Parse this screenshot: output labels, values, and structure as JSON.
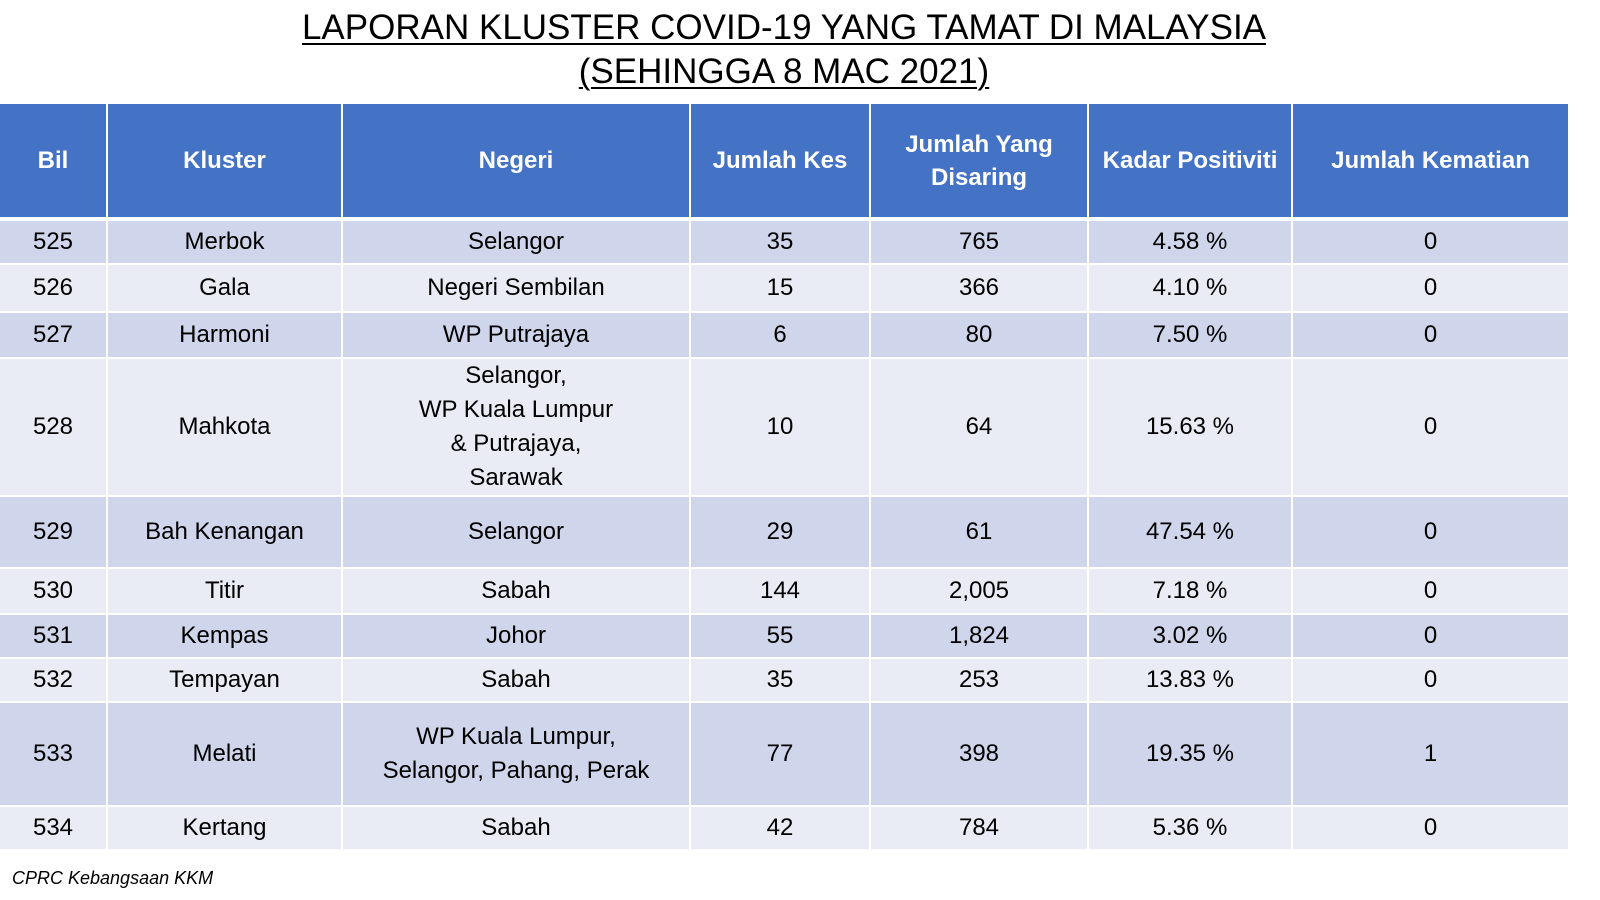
{
  "title": {
    "line1": "LAPORAN KLUSTER COVID-19 YANG TAMAT DI MALAYSIA",
    "line2": "(SEHINGGA 8 MAC 2021)"
  },
  "table": {
    "headers": {
      "bil": "Bil",
      "kluster": "Kluster",
      "negeri": "Negeri",
      "jumlah_kes": "Jumlah Kes",
      "jumlah_disaring": "Jumlah Yang Disaring",
      "kadar_positiviti": "Kadar Positiviti",
      "jumlah_kematian": "Jumlah Kematian"
    },
    "rows": [
      {
        "bil": "525",
        "kluster": "Merbok",
        "negeri": "Selangor",
        "kes": "35",
        "disaring": "765",
        "positiviti": "4.58 %",
        "kematian": "0"
      },
      {
        "bil": "526",
        "kluster": "Gala",
        "negeri": "Negeri Sembilan",
        "kes": "15",
        "disaring": "366",
        "positiviti": "4.10 %",
        "kematian": "0"
      },
      {
        "bil": "527",
        "kluster": "Harmoni",
        "negeri": "WP Putrajaya",
        "kes": "6",
        "disaring": "80",
        "positiviti": "7.50 %",
        "kematian": "0"
      },
      {
        "bil": "528",
        "kluster": "Mahkota",
        "negeri": "Selangor,\nWP Kuala Lumpur\n& Putrajaya,\nSarawak",
        "kes": "10",
        "disaring": "64",
        "positiviti": "15.63 %",
        "kematian": "0"
      },
      {
        "bil": "529",
        "kluster": "Bah Kenangan",
        "negeri": "Selangor",
        "kes": "29",
        "disaring": "61",
        "positiviti": "47.54 %",
        "kematian": "0"
      },
      {
        "bil": "530",
        "kluster": "Titir",
        "negeri": "Sabah",
        "kes": "144",
        "disaring": "2,005",
        "positiviti": "7.18 %",
        "kematian": "0"
      },
      {
        "bil": "531",
        "kluster": "Kempas",
        "negeri": "Johor",
        "kes": "55",
        "disaring": "1,824",
        "positiviti": "3.02 %",
        "kematian": "0"
      },
      {
        "bil": "532",
        "kluster": "Tempayan",
        "negeri": "Sabah",
        "kes": "35",
        "disaring": "253",
        "positiviti": "13.83 %",
        "kematian": "0"
      },
      {
        "bil": "533",
        "kluster": "Melati",
        "negeri": "WP Kuala Lumpur,\nSelangor, Pahang, Perak",
        "kes": "77",
        "disaring": "398",
        "positiviti": "19.35 %",
        "kematian": "1"
      },
      {
        "bil": "534",
        "kluster": "Kertang",
        "negeri": "Sabah",
        "kes": "42",
        "disaring": "784",
        "positiviti": "5.36 %",
        "kematian": "0"
      }
    ]
  },
  "footer": {
    "source": "CPRC Kebangsaan KKM"
  },
  "colors": {
    "header_bg": "#4472c4",
    "row_odd_bg": "#cfd5ea",
    "row_even_bg": "#e9ebf5"
  }
}
